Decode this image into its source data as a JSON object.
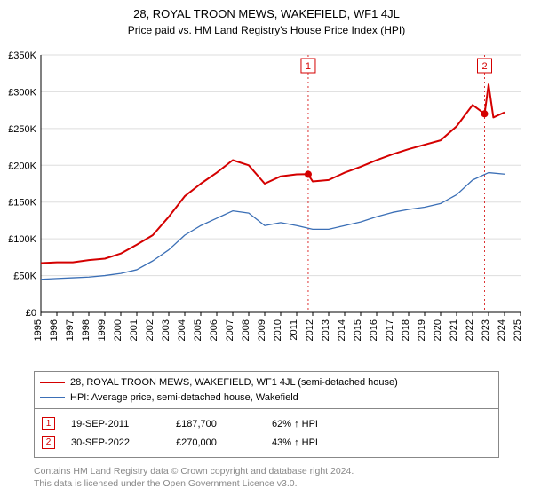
{
  "title": "28, ROYAL TROON MEWS, WAKEFIELD, WF1 4JL",
  "subtitle": "Price paid vs. HM Land Registry's House Price Index (HPI)",
  "chart": {
    "type": "line",
    "background_color": "#ffffff",
    "grid_color": "#dddddd",
    "axis_color": "#000000",
    "x": {
      "min": 1995,
      "max": 2025,
      "ticks": [
        1995,
        1996,
        1997,
        1998,
        1999,
        2000,
        2001,
        2002,
        2003,
        2004,
        2005,
        2006,
        2007,
        2008,
        2009,
        2010,
        2011,
        2012,
        2013,
        2014,
        2015,
        2016,
        2017,
        2018,
        2019,
        2020,
        2021,
        2022,
        2023,
        2024,
        2025
      ]
    },
    "y": {
      "min": 0,
      "max": 350000,
      "tick_step": 50000,
      "tick_labels": [
        "£0",
        "£50K",
        "£100K",
        "£150K",
        "£200K",
        "£250K",
        "£300K",
        "£350K"
      ]
    },
    "series": [
      {
        "name": "28, ROYAL TROON MEWS, WAKEFIELD, WF1 4JL (semi-detached house)",
        "color": "#d40000",
        "width": 2,
        "points": [
          [
            1995,
            67000
          ],
          [
            1996,
            68000
          ],
          [
            1997,
            68000
          ],
          [
            1998,
            71000
          ],
          [
            1999,
            73000
          ],
          [
            2000,
            80000
          ],
          [
            2001,
            92000
          ],
          [
            2002,
            105000
          ],
          [
            2003,
            130000
          ],
          [
            2004,
            158000
          ],
          [
            2005,
            175000
          ],
          [
            2006,
            190000
          ],
          [
            2007,
            207000
          ],
          [
            2008,
            200000
          ],
          [
            2009,
            175000
          ],
          [
            2010,
            185000
          ],
          [
            2011,
            187700
          ],
          [
            2011.7,
            188000
          ],
          [
            2012,
            178000
          ],
          [
            2013,
            180000
          ],
          [
            2014,
            190000
          ],
          [
            2015,
            198000
          ],
          [
            2016,
            207000
          ],
          [
            2017,
            215000
          ],
          [
            2018,
            222000
          ],
          [
            2019,
            228000
          ],
          [
            2020,
            234000
          ],
          [
            2021,
            253000
          ],
          [
            2022,
            282000
          ],
          [
            2022.75,
            270000
          ],
          [
            2023,
            310000
          ],
          [
            2023.3,
            265000
          ],
          [
            2024,
            272000
          ]
        ]
      },
      {
        "name": "HPI: Average price, semi-detached house, Wakefield",
        "color": "#3b6fb6",
        "width": 1.3,
        "points": [
          [
            1995,
            45000
          ],
          [
            1996,
            46000
          ],
          [
            1997,
            47000
          ],
          [
            1998,
            48000
          ],
          [
            1999,
            50000
          ],
          [
            2000,
            53000
          ],
          [
            2001,
            58000
          ],
          [
            2002,
            70000
          ],
          [
            2003,
            85000
          ],
          [
            2004,
            105000
          ],
          [
            2005,
            118000
          ],
          [
            2006,
            128000
          ],
          [
            2007,
            138000
          ],
          [
            2008,
            135000
          ],
          [
            2009,
            118000
          ],
          [
            2010,
            122000
          ],
          [
            2011,
            118000
          ],
          [
            2012,
            113000
          ],
          [
            2013,
            113000
          ],
          [
            2014,
            118000
          ],
          [
            2015,
            123000
          ],
          [
            2016,
            130000
          ],
          [
            2017,
            136000
          ],
          [
            2018,
            140000
          ],
          [
            2019,
            143000
          ],
          [
            2020,
            148000
          ],
          [
            2021,
            160000
          ],
          [
            2022,
            180000
          ],
          [
            2023,
            190000
          ],
          [
            2024,
            188000
          ]
        ]
      }
    ],
    "markers": [
      {
        "num": "1",
        "x": 2011.72,
        "y": 187700,
        "line_color": "#d40000",
        "label_bg": "#ffffff"
      },
      {
        "num": "2",
        "x": 2022.75,
        "y": 270000,
        "line_color": "#d40000",
        "label_bg": "#ffffff"
      }
    ]
  },
  "legend": [
    {
      "color": "#d40000",
      "width": 2,
      "label": "28, ROYAL TROON MEWS, WAKEFIELD, WF1 4JL (semi-detached house)"
    },
    {
      "color": "#3b6fb6",
      "width": 1.3,
      "label": "HPI: Average price, semi-detached house, Wakefield"
    }
  ],
  "transactions": [
    {
      "num": "1",
      "color": "#d40000",
      "date": "19-SEP-2011",
      "price": "£187,700",
      "pct": "62% ↑ HPI"
    },
    {
      "num": "2",
      "color": "#d40000",
      "date": "30-SEP-2022",
      "price": "£270,000",
      "pct": "43% ↑ HPI"
    }
  ],
  "footer_line1": "Contains HM Land Registry data © Crown copyright and database right 2024.",
  "footer_line2": "This data is licensed under the Open Government Licence v3.0.",
  "font_sizes": {
    "title": 13,
    "subtitle": 12,
    "axis": 11,
    "legend": 11,
    "footer": 10.5
  },
  "text_color": "#000000",
  "footer_color": "#888888"
}
